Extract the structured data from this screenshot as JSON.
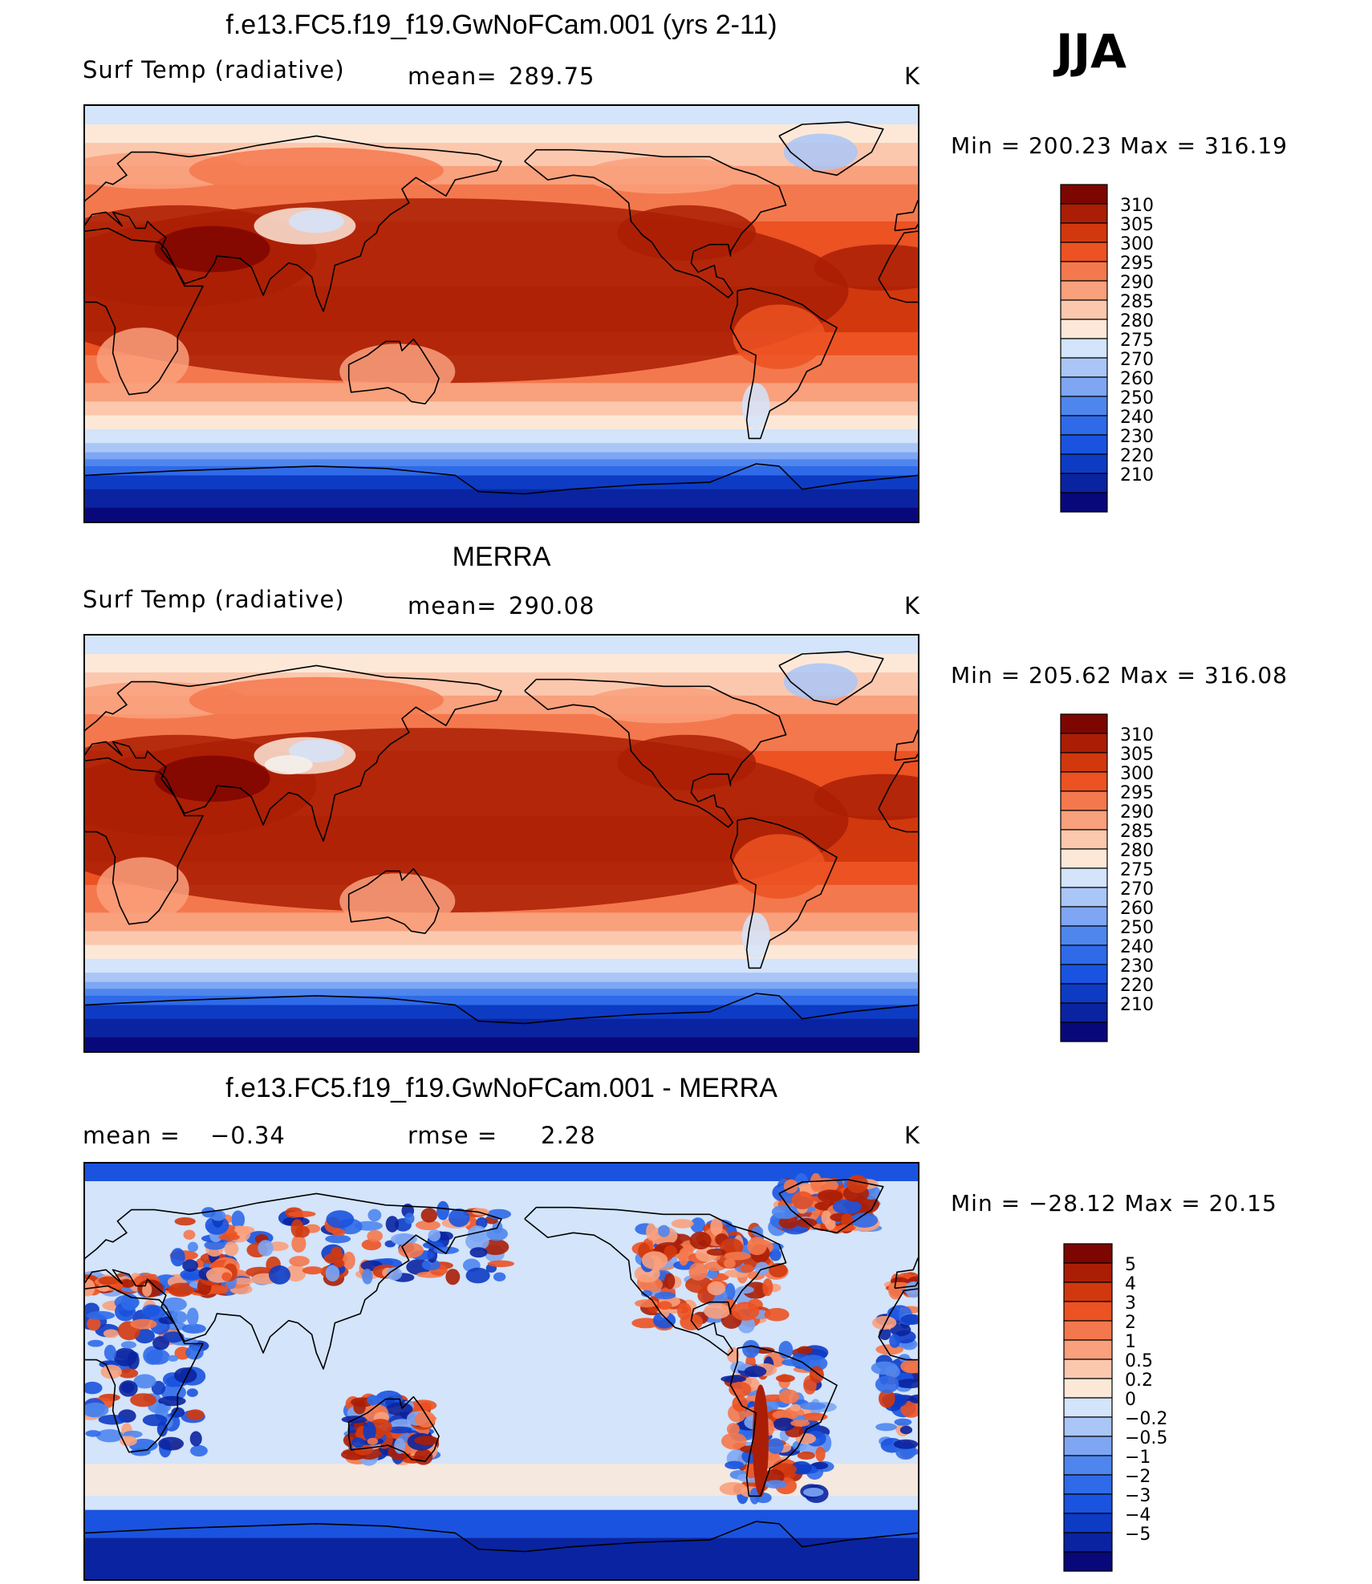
{
  "season": "JJA",
  "units": "K",
  "panels": [
    {
      "title": "f.e13.FC5.f19_f19.GwNoFCam.001 (yrs 2-11)",
      "left_label": "Surf Temp (radiative)",
      "stat_label": "mean=",
      "stat_value": "289.75",
      "min_label": "Min",
      "min_value": "200.23",
      "max_label": "Max",
      "max_value": "316.19"
    },
    {
      "title": "MERRA",
      "left_label": "Surf Temp (radiative)",
      "stat_label": "mean=",
      "stat_value": "290.08",
      "min_label": "Min",
      "min_value": "205.62",
      "max_label": "Max",
      "max_value": "316.08"
    },
    {
      "title": "f.e13.FC5.f19_f19.GwNoFCam.001 - MERRA",
      "left_label": "mean =",
      "left_value": "−0.34",
      "stat_label": "rmse =",
      "stat_value": "2.28",
      "min_label": "Min",
      "min_value": "−28.12",
      "max_label": "Max",
      "max_value": "20.15"
    }
  ],
  "colors": {
    "abs": [
      "#08087a",
      "#0a23a0",
      "#0d3bc4",
      "#1a53df",
      "#2f6ae8",
      "#4f86ee",
      "#7ea6f3",
      "#aac6f7",
      "#d3e4fb",
      "#fde8d8",
      "#fbc8ae",
      "#f9a07c",
      "#f4784d",
      "#ec5222",
      "#d2380e",
      "#aa1e05",
      "#7e0600"
    ],
    "diff": [
      "#08087a",
      "#0a23a0",
      "#0d3bc4",
      "#1a53df",
      "#2f6ae8",
      "#4f86ee",
      "#7ea6f3",
      "#aac6f7",
      "#d3e4fb",
      "#fde8d8",
      "#fbc8ae",
      "#f9a07c",
      "#f4784d",
      "#ec5222",
      "#d2380e",
      "#aa1e05",
      "#7e0600"
    ]
  },
  "chart_data": [
    {
      "type": "heatmap",
      "title": "f.e13.FC5.f19_f19.GwNoFCam.001 (yrs 2-11)",
      "variable": "Surf Temp (radiative)",
      "units": "K",
      "mean": 289.75,
      "min": 200.23,
      "max": 316.19,
      "contour_levels": [
        210,
        220,
        230,
        240,
        250,
        260,
        270,
        275,
        280,
        285,
        290,
        295,
        300,
        305,
        310
      ],
      "xlim": [
        0,
        360
      ],
      "ylim": [
        -90,
        90
      ]
    },
    {
      "type": "heatmap",
      "title": "MERRA",
      "variable": "Surf Temp (radiative)",
      "units": "K",
      "mean": 290.08,
      "min": 205.62,
      "max": 316.08,
      "contour_levels": [
        210,
        220,
        230,
        240,
        250,
        260,
        270,
        275,
        280,
        285,
        290,
        295,
        300,
        305,
        310
      ],
      "xlim": [
        0,
        360
      ],
      "ylim": [
        -90,
        90
      ]
    },
    {
      "type": "heatmap",
      "title": "f.e13.FC5.f19_f19.GwNoFCam.001 - MERRA",
      "units": "K",
      "mean": -0.34,
      "rmse": 2.28,
      "min": -28.12,
      "max": 20.15,
      "contour_levels": [
        -5,
        -4,
        -3,
        -2,
        -1,
        -0.5,
        -0.2,
        0,
        0.2,
        0.5,
        1,
        2,
        3,
        4,
        5
      ],
      "xlim": [
        0,
        360
      ],
      "ylim": [
        -90,
        90
      ]
    }
  ],
  "colorbars": [
    {
      "labels": [
        "310",
        "305",
        "300",
        "295",
        "290",
        "285",
        "280",
        "275",
        "270",
        "260",
        "250",
        "240",
        "230",
        "220",
        "210"
      ]
    },
    {
      "labels": [
        "310",
        "305",
        "300",
        "295",
        "290",
        "285",
        "280",
        "275",
        "270",
        "260",
        "250",
        "240",
        "230",
        "220",
        "210"
      ]
    },
    {
      "labels": [
        "5",
        "4",
        "3",
        "2",
        "1",
        "0.5",
        "0.2",
        "0",
        "−0.2",
        "−0.5",
        "−1",
        "−2",
        "−3",
        "−4",
        "−5"
      ]
    }
  ]
}
